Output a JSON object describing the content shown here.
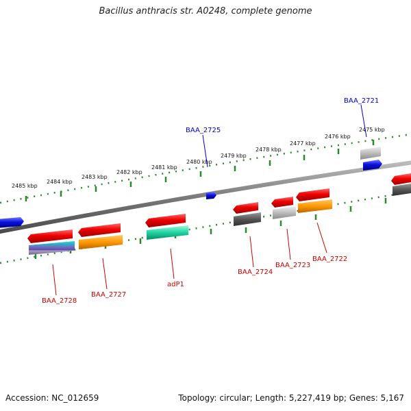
{
  "header": {
    "title": "Bacillus anthracis str. A0248, complete genome"
  },
  "footer": {
    "accession": "Accession: NC_012659",
    "summary": "Topology: circular; Length: 5,227,419 bp; Genes: 5,167"
  },
  "ruler": {
    "labels": [
      "2485 kbp",
      "2484 kbp",
      "2483 kbp",
      "2482 kbp",
      "2481 kbp",
      "2480 kbp",
      "2479 kbp",
      "2478 kbp",
      "2477 kbp",
      "2476 kbp",
      "2475 kbp"
    ]
  },
  "genes_top": [
    {
      "label": "BAA_2725",
      "color": "#0000cc"
    },
    {
      "label": "BAA_2721",
      "color": "#0000cc"
    }
  ],
  "genes_bottom": [
    {
      "label": "BAA_2728",
      "color": "#cc0000"
    },
    {
      "label": "BAA_2727",
      "color": "#cc0000"
    },
    {
      "label": "adP1",
      "color": "#cc0000"
    },
    {
      "label": "BAA_2724",
      "color": "#cc0000"
    },
    {
      "label": "BAA_2723",
      "color": "#cc0000"
    },
    {
      "label": "BAA_2722",
      "color": "#cc0000"
    }
  ],
  "colors": {
    "backbone": "#808080",
    "tick": "#2a8a2a",
    "red_gene": "#e00000",
    "blue_gene": "#0a10e0",
    "orange": "#ff9900",
    "teal": "#20c0a0",
    "gray_dark": "#555555",
    "gray_light": "#b8b8b8"
  }
}
